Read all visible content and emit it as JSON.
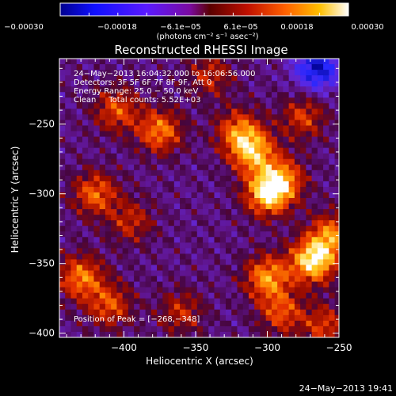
{
  "chart_data": {
    "type": "heatmap",
    "title": "Reconstructed RHESSI Image",
    "xlabel": "Heliocentric X (arcsec)",
    "ylabel": "Heliocentric Y (arcsec)",
    "xlim": [
      -445,
      -250
    ],
    "ylim": [
      -403,
      -203
    ],
    "x_ticks": [
      -400,
      -350,
      -300,
      -250
    ],
    "y_ticks": [
      -250,
      -300,
      -350,
      -400
    ],
    "x_tick_labels": [
      "−400",
      "−350",
      "−300",
      "−250"
    ],
    "y_tick_labels": [
      "−250",
      "−300",
      "−350",
      "−400"
    ],
    "colorbar": {
      "range": [
        -0.0003,
        0.0003
      ],
      "tick_labels": [
        "−0.00030",
        "−0.00018",
        "−6.1e−05",
        "6.1e−05",
        "0.00018",
        "0.00030"
      ],
      "unit_label": "(photons cm⁻² s⁻¹ asec⁻²)"
    },
    "annotations": [
      "24−May−2013 16:04:32.000 to 16:06:56.000",
      "Detectors: 3F 5F 6F 7F 8F 9F, Att 0",
      "Energy Range: 25.0 − 50.0 keV",
      "Clean     Total counts: 5.52E+03"
    ],
    "peak_text": "Position of Peak = [−268,−348]",
    "peak_position": [
      -268,
      -348
    ],
    "hotspots": [
      {
        "x": -310,
        "y": -270,
        "value": 0.00024
      },
      {
        "x": -300,
        "y": -300,
        "value": 0.00026
      },
      {
        "x": -320,
        "y": -255,
        "value": 0.00018
      },
      {
        "x": -290,
        "y": -290,
        "value": 0.0002
      },
      {
        "x": -268,
        "y": -348,
        "value": 0.0003
      },
      {
        "x": -255,
        "y": -330,
        "value": 0.0002
      },
      {
        "x": -300,
        "y": -360,
        "value": 0.00022
      },
      {
        "x": -290,
        "y": -385,
        "value": 0.00016
      },
      {
        "x": -375,
        "y": -255,
        "value": 0.0002
      },
      {
        "x": -405,
        "y": -240,
        "value": 0.00016
      },
      {
        "x": -420,
        "y": -300,
        "value": 0.00018
      },
      {
        "x": -395,
        "y": -320,
        "value": 0.00012
      },
      {
        "x": -430,
        "y": -360,
        "value": 0.0002
      },
      {
        "x": -410,
        "y": -380,
        "value": 0.00016
      },
      {
        "x": -360,
        "y": -385,
        "value": 0.00012
      },
      {
        "x": -340,
        "y": -215,
        "value": 0.00012
      },
      {
        "x": -275,
        "y": -245,
        "value": 0.00014
      },
      {
        "x": -260,
        "y": -395,
        "value": 0.00014
      }
    ],
    "minimum_region": {
      "x": -265,
      "y": -210,
      "value": -0.00024
    }
  },
  "footer": {
    "timestamp": "24−May−2013 19:41"
  }
}
